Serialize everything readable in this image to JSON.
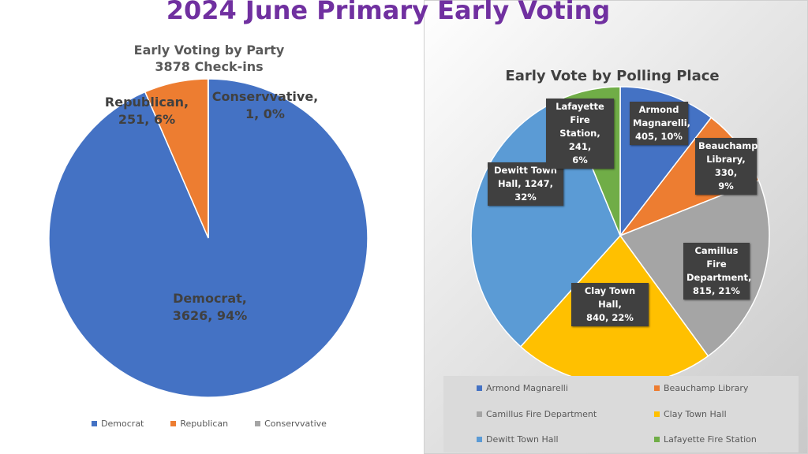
{
  "title": "2024 June Primary Early Voting",
  "chart_data": [
    {
      "type": "pie",
      "title": "Early Voting by Party",
      "subtitle": "3878 Check-ins",
      "categories": [
        "Democrat",
        "Republican",
        "Conservvative"
      ],
      "values": [
        3626,
        251,
        1
      ],
      "percents": [
        "94%",
        "6%",
        "0%"
      ],
      "colors": [
        "#4472C4",
        "#ED7D31",
        "#A5A5A5"
      ],
      "labels": [
        "Democrat, 3626, 94%",
        "Republican, 251, 6%",
        "Conservvative, 1, 0%"
      ],
      "label_lines": [
        [
          "Democrat,",
          "3626, 94%"
        ],
        [
          "Republican,",
          "251, 6%"
        ],
        [
          "Conservvative,",
          "1, 0%"
        ]
      ],
      "legend": "bottom"
    },
    {
      "type": "pie",
      "title": "Early Vote by Polling Place",
      "categories": [
        "Armond Magnarelli",
        "Beauchamp Library",
        "Camillus Fire Department",
        "Clay Town Hall",
        "Dewitt Town Hall",
        "Lafayette Fire Station"
      ],
      "values": [
        405,
        330,
        815,
        840,
        1247,
        241
      ],
      "percents": [
        "10%",
        "9%",
        "21%",
        "22%",
        "32%",
        "6%"
      ],
      "colors": [
        "#4472C4",
        "#ED7D31",
        "#A5A5A5",
        "#FFC000",
        "#5B9BD5",
        "#70AD47"
      ],
      "label_lines": [
        [
          "Armond",
          "Magnarelli,",
          "405, 10%"
        ],
        [
          "Beauchamp",
          "Library, 330,",
          "9%"
        ],
        [
          "Camillus Fire",
          "Department,",
          "815, 21%"
        ],
        [
          "Clay Town Hall,",
          "840, 22%"
        ],
        [
          "Dewitt Town",
          "Hall, 1247, 32%"
        ],
        [
          "Lafayette Fire",
          "Station, 241,",
          "6%"
        ]
      ],
      "legend": "bottom"
    }
  ]
}
